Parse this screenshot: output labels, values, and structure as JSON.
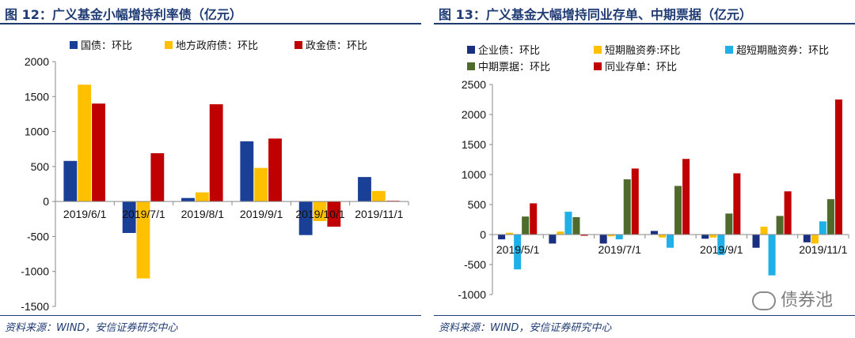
{
  "chart_data": [
    {
      "type": "bar",
      "title": "图 12：广义基金小幅增持利率债（亿元）",
      "source": "资料来源：WIND，安信证券研究中心",
      "categories": [
        "2019/6/1",
        "2019/7/1",
        "2019/8/1",
        "2019/9/1",
        "2019/10/1",
        "2019/11/1"
      ],
      "ylim": [
        -1500,
        2000
      ],
      "yticks": [
        -1500,
        -1000,
        -500,
        0,
        500,
        1000,
        1500,
        2000
      ],
      "ytick_labels": [
        "-1500",
        "-1000",
        "-500",
        "0",
        "500",
        "1000",
        "1500",
        "2000"
      ],
      "legend_position": "top",
      "series": [
        {
          "name": "国债：环比",
          "color": "#1a3f96",
          "values": [
            580,
            -450,
            50,
            860,
            -480,
            350
          ]
        },
        {
          "name": "地方政府债：环比",
          "color": "#ffc000",
          "values": [
            1670,
            -1100,
            130,
            480,
            -280,
            150
          ]
        },
        {
          "name": "政金债：环比",
          "color": "#c00000",
          "values": [
            1400,
            690,
            1390,
            900,
            -360,
            10
          ]
        }
      ]
    },
    {
      "type": "bar",
      "title": "图 13：广义基金大幅增持同业存单、中期票据（亿元）",
      "source": "资料来源：WIND，安信证券研究中心",
      "categories": [
        "2019/5/1",
        "2019/6/1",
        "2019/7/1",
        "2019/8/1",
        "2019/9/1",
        "2019/10/1",
        "2019/11/1"
      ],
      "x_tick_labels": [
        "2019/5/1",
        "",
        "2019/7/1",
        "",
        "2019/9/1",
        "",
        "2019/11/1"
      ],
      "ylim": [
        -1000,
        2500
      ],
      "yticks": [
        -1000,
        -500,
        0,
        500,
        1000,
        1500,
        2000,
        2500
      ],
      "ytick_labels": [
        "-1000",
        "-500",
        "0",
        "500",
        "1000",
        "1500",
        "2000",
        "2500"
      ],
      "legend_position": "top",
      "series": [
        {
          "name": "企业债：环比",
          "color": "#1a2f80",
          "values": [
            -80,
            -150,
            -150,
            60,
            -70,
            -220,
            -130
          ]
        },
        {
          "name": "短期融资券:环比",
          "color": "#ffc000",
          "values": [
            30,
            50,
            -30,
            -50,
            -50,
            130,
            -150
          ]
        },
        {
          "name": "超短期融资券：环比",
          "color": "#1fb0e8",
          "values": [
            -580,
            380,
            -80,
            -220,
            -340,
            -680,
            220
          ]
        },
        {
          "name": "中期票据：环比",
          "color": "#4f6b2c",
          "values": [
            300,
            290,
            920,
            810,
            350,
            310,
            590
          ]
        },
        {
          "name": "同业存单：环比",
          "color": "#c00000",
          "values": [
            520,
            -20,
            1100,
            1260,
            1020,
            720,
            2250
          ]
        }
      ]
    }
  ],
  "watermark": {
    "text": "债券池",
    "icon": "wechat-icon"
  }
}
